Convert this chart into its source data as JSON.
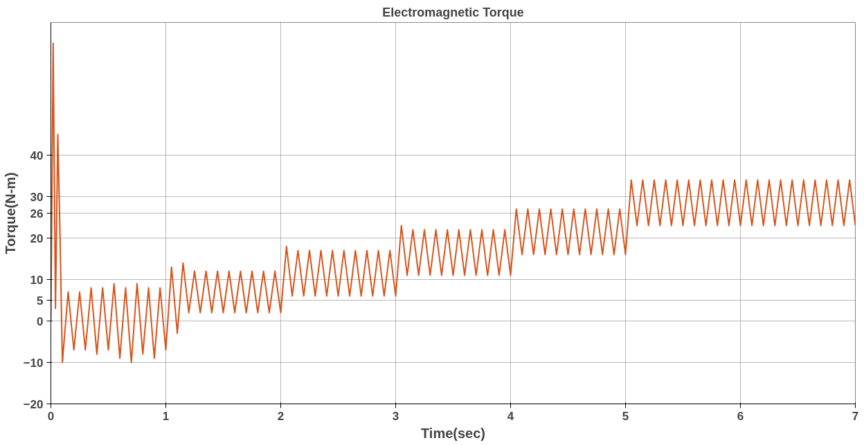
{
  "chart_data": {
    "type": "line",
    "title": "Electromagnetic Torque",
    "xlabel": "Time(sec)",
    "ylabel": "Torque(N-m)",
    "x": [
      0,
      0.02,
      0.04,
      0.06,
      0.08,
      0.1,
      0.15,
      0.2,
      0.25,
      0.3,
      0.35,
      0.4,
      0.45,
      0.5,
      0.55,
      0.6,
      0.65,
      0.7,
      0.75,
      0.8,
      0.85,
      0.9,
      0.95,
      1.0,
      1.05,
      1.1,
      1.15,
      1.2,
      1.25,
      1.3,
      1.35,
      1.4,
      1.45,
      1.5,
      1.55,
      1.6,
      1.65,
      1.7,
      1.75,
      1.8,
      1.85,
      1.9,
      1.95,
      2.0,
      2.05,
      2.1,
      2.15,
      2.2,
      2.25,
      2.3,
      2.35,
      2.4,
      2.45,
      2.5,
      2.55,
      2.6,
      2.65,
      2.7,
      2.75,
      2.8,
      2.85,
      2.9,
      2.95,
      3.0,
      3.05,
      3.1,
      3.15,
      3.2,
      3.25,
      3.3,
      3.35,
      3.4,
      3.45,
      3.5,
      3.55,
      3.6,
      3.65,
      3.7,
      3.75,
      3.8,
      3.85,
      3.9,
      3.95,
      4.0,
      4.05,
      4.1,
      4.15,
      4.2,
      4.25,
      4.3,
      4.35,
      4.4,
      4.45,
      4.5,
      4.55,
      4.6,
      4.65,
      4.7,
      4.75,
      4.8,
      4.85,
      4.9,
      4.95,
      5.0,
      5.05,
      5.1,
      5.15,
      5.2,
      5.25,
      5.3,
      5.35,
      5.4,
      5.45,
      5.5,
      5.55,
      5.6,
      5.65,
      5.7,
      5.75,
      5.8,
      5.85,
      5.9,
      5.95,
      6.0,
      6.05,
      6.1,
      6.15,
      6.2,
      6.25,
      6.3,
      6.35,
      6.4,
      6.45,
      6.5,
      6.55,
      6.6,
      6.65,
      6.7,
      6.75,
      6.8,
      6.85,
      6.9,
      6.95,
      7.0
    ],
    "series": [
      {
        "color": "#d95319",
        "values": [
          0,
          67,
          3,
          45,
          20,
          -10,
          7,
          -7,
          7,
          -7,
          8,
          -8,
          8,
          -7,
          9,
          -9,
          8,
          -10,
          9,
          -8,
          8,
          -9,
          8,
          -7,
          13,
          -3,
          14,
          2,
          12,
          2,
          12,
          2,
          12,
          2,
          12,
          2,
          12,
          2,
          12,
          2,
          12,
          2,
          12,
          2,
          18,
          6,
          17,
          6,
          17,
          6,
          17,
          6,
          17,
          6,
          17,
          6,
          17,
          6,
          17,
          6,
          17,
          6,
          17,
          6,
          23,
          11,
          22,
          11,
          22,
          11,
          22,
          11,
          22,
          11,
          22,
          11,
          22,
          11,
          22,
          11,
          22,
          11,
          22,
          11,
          27,
          16,
          27,
          16,
          27,
          16,
          27,
          16,
          27,
          16,
          27,
          16,
          27,
          16,
          27,
          16,
          27,
          16,
          27,
          16,
          34,
          23,
          34,
          23,
          34,
          23,
          34,
          23,
          34,
          23,
          34,
          23,
          34,
          23,
          34,
          23,
          34,
          23,
          34,
          23,
          34,
          23,
          34,
          23,
          34,
          23,
          34,
          23,
          34,
          23,
          34,
          23,
          34,
          23,
          34,
          23,
          34,
          23,
          34,
          23
        ]
      }
    ],
    "xlim": [
      0,
      7
    ],
    "ylim": [
      -20,
      72
    ],
    "xticks": [
      0,
      1,
      2,
      3,
      4,
      5,
      6,
      7
    ],
    "yticks": [
      -20,
      -10,
      0,
      5,
      10,
      20,
      26,
      30,
      40
    ],
    "grid": true,
    "line_style": "solid"
  }
}
